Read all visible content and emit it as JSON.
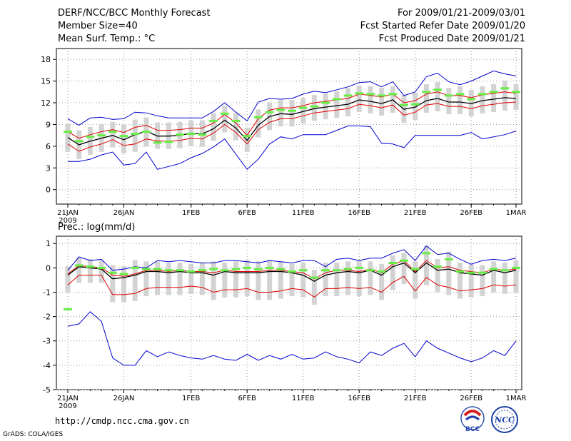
{
  "header": {
    "title": "DERF/NCC/BCC Monthly Forecast",
    "member_size": "Member Size=40",
    "variable1": "Mean Surf. Temp.: °C",
    "period": "For 2009/01/21-2009/03/01",
    "start_date": "Fcst Started Refer Date 2009/01/20",
    "produced_date": "Fcst Produced Date 2009/01/21"
  },
  "footer": {
    "url": "http://cmdp.ncc.cma.gov.cn",
    "grads": "GrADS: COLA/IGES",
    "logo_left_text": "BCC",
    "logo_right_text": "NCC"
  },
  "colors": {
    "max_line": "#0000d0",
    "min_line": "#e00000",
    "mean_line": "#000000",
    "marker": "#66ee44",
    "box": "#d3d3d3",
    "grid": "#999999"
  },
  "chart_data": [
    {
      "type": "line",
      "title": "Mean Surf. Temp.: °C",
      "x_ticks": [
        "21JAN",
        "26JAN",
        "1FEB",
        "6FEB",
        "11FEB",
        "16FEB",
        "21FEB",
        "26FEB",
        "1MAR"
      ],
      "x_tick_days": [
        0,
        5,
        11,
        16,
        21,
        26,
        31,
        36,
        40
      ],
      "x_sub": "2009",
      "ylim": [
        -2,
        19.5
      ],
      "yticks": [
        0,
        3,
        6,
        9,
        12,
        15,
        18
      ],
      "series": [
        {
          "name": "max",
          "values": [
            9.8,
            8.9,
            9.9,
            10.0,
            9.7,
            9.8,
            10.7,
            10.6,
            10.2,
            9.9,
            9.9,
            9.9,
            9.9,
            10.8,
            12.0,
            10.7,
            9.5,
            12.1,
            12.6,
            12.5,
            12.6,
            13.2,
            13.6,
            13.4,
            13.8,
            14.2,
            14.8,
            14.9,
            14.2,
            14.9,
            13.0,
            13.5,
            15.6,
            16.1,
            14.9,
            14.5,
            15.0,
            15.7,
            16.4,
            16.0,
            15.7
          ]
        },
        {
          "name": "p_upper",
          "values": [
            8.0,
            7.1,
            7.6,
            8.0,
            8.3,
            7.9,
            8.6,
            8.9,
            8.2,
            8.2,
            8.3,
            8.5,
            8.5,
            9.2,
            10.4,
            9.2,
            7.5,
            9.8,
            11.0,
            11.3,
            11.3,
            11.6,
            12.0,
            12.2,
            12.4,
            12.6,
            13.2,
            13.0,
            12.8,
            13.2,
            12.0,
            12.3,
            13.2,
            13.5,
            13.0,
            13.0,
            12.7,
            13.1,
            13.3,
            13.5,
            13.3
          ]
        },
        {
          "name": "mean",
          "values": [
            7.2,
            6.2,
            6.7,
            7.1,
            7.5,
            6.9,
            7.6,
            8.1,
            7.4,
            7.4,
            7.5,
            7.8,
            7.7,
            8.4,
            9.6,
            8.5,
            6.8,
            8.9,
            10.1,
            10.5,
            10.4,
            10.8,
            11.2,
            11.4,
            11.6,
            11.8,
            12.4,
            12.2,
            11.9,
            12.4,
            11.1,
            11.4,
            12.3,
            12.6,
            12.1,
            12.1,
            11.9,
            12.3,
            12.5,
            12.7,
            12.6
          ]
        },
        {
          "name": "min",
          "values": [
            6.3,
            5.3,
            5.9,
            6.3,
            6.9,
            6.1,
            6.3,
            7.0,
            6.7,
            6.7,
            6.8,
            7.1,
            7.0,
            7.8,
            9.0,
            7.9,
            6.3,
            8.3,
            9.3,
            9.8,
            9.8,
            10.2,
            10.6,
            10.8,
            11.0,
            11.2,
            11.8,
            11.6,
            11.3,
            11.7,
            10.3,
            10.7,
            11.7,
            11.9,
            11.5,
            11.5,
            11.2,
            11.6,
            11.8,
            12.0,
            12.1
          ]
        },
        {
          "name": "lowest",
          "values": [
            3.9,
            3.9,
            4.2,
            4.8,
            5.2,
            3.4,
            3.6,
            5.2,
            2.8,
            3.2,
            3.6,
            4.4,
            5.0,
            5.9,
            7.0,
            4.9,
            2.8,
            4.2,
            6.3,
            7.3,
            7.0,
            7.6,
            7.6,
            7.6,
            8.2,
            8.8,
            8.8,
            8.7,
            6.4,
            6.3,
            5.8,
            7.5,
            7.5,
            7.5,
            7.5,
            7.5,
            7.9,
            7.0,
            7.3,
            7.6,
            8.1
          ]
        },
        {
          "name": "marker",
          "values": [
            8.0,
            6.7,
            7.3,
            7.5,
            8.0,
            7.4,
            7.7,
            8.0,
            6.5,
            6.6,
            7.6,
            7.7,
            7.6,
            9.5,
            10.5,
            9.5,
            7.4,
            10.0,
            10.7,
            11.0,
            10.9,
            11.3,
            11.5,
            12.0,
            12.5,
            13.0,
            13.3,
            13.2,
            13.0,
            13.2,
            11.7,
            11.8,
            13.5,
            13.8,
            13.0,
            13.2,
            12.5,
            13.2,
            13.5,
            14.0,
            13.5
          ]
        }
      ]
    },
    {
      "type": "line",
      "title": "Prec.: log(mm/d)",
      "x_ticks": [
        "21JAN",
        "26JAN",
        "1FEB",
        "6FEB",
        "11FEB",
        "16FEB",
        "21FEB",
        "26FEB",
        "1MAR"
      ],
      "x_tick_days": [
        0,
        5,
        11,
        16,
        21,
        26,
        31,
        36,
        40
      ],
      "x_sub": "2009",
      "ylim": [
        -5,
        1.3
      ],
      "yticks": [
        -5,
        -4,
        -3,
        -2,
        -1,
        0,
        1
      ],
      "series": [
        {
          "name": "max",
          "values": [
            -0.1,
            0.45,
            0.3,
            0.35,
            -0.1,
            -0.05,
            0.05,
            0.0,
            0.3,
            0.25,
            0.3,
            0.25,
            0.2,
            0.2,
            0.3,
            0.3,
            0.25,
            0.2,
            0.3,
            0.25,
            0.2,
            0.3,
            0.3,
            0.05,
            0.35,
            0.4,
            0.3,
            0.4,
            0.4,
            0.6,
            0.75,
            0.3,
            0.9,
            0.55,
            0.6,
            0.35,
            0.15,
            0.3,
            0.35,
            0.3,
            0.4
          ]
        },
        {
          "name": "p_upper",
          "values": [
            -0.25,
            0.1,
            0.05,
            0.0,
            -0.3,
            -0.35,
            -0.25,
            -0.1,
            -0.1,
            -0.15,
            -0.1,
            -0.15,
            -0.15,
            -0.2,
            -0.1,
            -0.15,
            -0.15,
            -0.15,
            -0.1,
            -0.1,
            -0.15,
            -0.2,
            -0.45,
            -0.2,
            -0.1,
            -0.1,
            -0.15,
            -0.05,
            -0.2,
            0.15,
            0.3,
            -0.15,
            0.3,
            0.0,
            0.05,
            -0.1,
            -0.15,
            -0.2,
            -0.05,
            -0.1,
            -0.05
          ]
        },
        {
          "name": "mean",
          "values": [
            -0.3,
            0.05,
            0.0,
            -0.05,
            -0.45,
            -0.4,
            -0.3,
            -0.15,
            -0.15,
            -0.2,
            -0.15,
            -0.2,
            -0.2,
            -0.3,
            -0.15,
            -0.2,
            -0.2,
            -0.2,
            -0.15,
            -0.15,
            -0.2,
            -0.3,
            -0.55,
            -0.3,
            -0.2,
            -0.15,
            -0.2,
            -0.1,
            -0.3,
            0.05,
            0.2,
            -0.2,
            0.2,
            -0.1,
            -0.05,
            -0.2,
            -0.25,
            -0.3,
            -0.1,
            -0.2,
            -0.1
          ]
        },
        {
          "name": "min",
          "values": [
            -0.7,
            -0.3,
            -0.3,
            -0.3,
            -1.1,
            -1.1,
            -1.05,
            -0.85,
            -0.8,
            -0.8,
            -0.8,
            -0.75,
            -0.8,
            -1.0,
            -0.9,
            -0.9,
            -0.85,
            -1.0,
            -1.0,
            -0.95,
            -0.85,
            -0.9,
            -1.2,
            -0.85,
            -0.85,
            -0.8,
            -0.85,
            -0.8,
            -1.0,
            -0.6,
            -0.35,
            -0.95,
            -0.4,
            -0.7,
            -0.8,
            -0.95,
            -0.9,
            -0.85,
            -0.7,
            -0.75,
            -0.7
          ]
        },
        {
          "name": "lowest",
          "values": [
            -2.4,
            -2.3,
            -1.8,
            -2.2,
            -3.7,
            -4.0,
            -4.0,
            -3.4,
            -3.65,
            -3.45,
            -3.6,
            -3.7,
            -3.75,
            -3.6,
            -3.75,
            -3.8,
            -3.55,
            -3.8,
            -3.6,
            -3.75,
            -3.55,
            -3.75,
            -3.7,
            -3.45,
            -3.65,
            -3.75,
            -3.9,
            -3.45,
            -3.6,
            -3.3,
            -3.1,
            -3.65,
            -3.0,
            -3.3,
            -3.5,
            -3.7,
            -3.85,
            -3.7,
            -3.4,
            -3.6,
            -3.0
          ]
        },
        {
          "name": "marker",
          "values": [
            -1.7,
            0.1,
            0.05,
            0.0,
            -0.2,
            -0.25,
            0.0,
            -0.05,
            -0.05,
            -0.1,
            -0.1,
            -0.15,
            -0.1,
            -0.05,
            -0.1,
            -0.05,
            0.0,
            -0.05,
            0.0,
            -0.05,
            -0.15,
            -0.1,
            -0.4,
            -0.1,
            -0.1,
            -0.05,
            0.0,
            -0.1,
            -0.15,
            0.2,
            0.3,
            -0.05,
            0.6,
            0.05,
            0.35,
            -0.15,
            -0.2,
            -0.2,
            -0.05,
            -0.1,
            0.0
          ]
        }
      ]
    }
  ]
}
